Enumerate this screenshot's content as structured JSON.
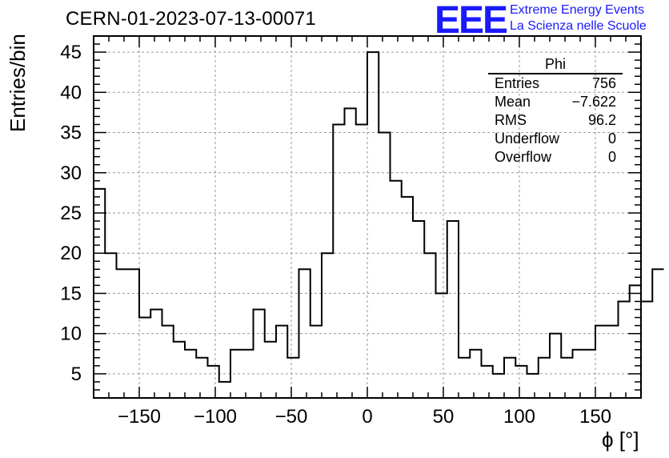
{
  "title": "CERN-01-2023-07-13-00071",
  "logo": {
    "mark": "EEE",
    "line1": "Extreme Energy Events",
    "line2": "La Scienza nelle Scuole"
  },
  "stats": {
    "title": "Phi",
    "rows": [
      {
        "label": "Entries",
        "value": "756"
      },
      {
        "label": "Mean",
        "value": "−7.622"
      },
      {
        "label": "RMS",
        "value": "96.2"
      },
      {
        "label": "Underflow",
        "value": "0"
      },
      {
        "label": "Overflow",
        "value": "0"
      }
    ]
  },
  "chart_data": {
    "type": "histogram",
    "title": "CERN-01-2023-07-13-00071",
    "xlabel": "ϕ [°]",
    "ylabel": "Entries/bin",
    "xlim": [
      -180,
      180
    ],
    "ylim": [
      2,
      47
    ],
    "bin_width": 7.5,
    "grid": true,
    "x_ticks": [
      -150,
      -100,
      -50,
      0,
      50,
      100,
      150
    ],
    "x_tick_labels": [
      "−150",
      "−100",
      "−50",
      "0",
      "50",
      "100",
      "150"
    ],
    "y_ticks": [
      5,
      10,
      15,
      20,
      25,
      30,
      35,
      40,
      45
    ],
    "values": [
      28,
      20,
      18,
      18,
      12,
      13,
      11,
      9,
      8,
      7,
      6,
      4,
      8,
      8,
      13,
      9,
      11,
      7,
      18,
      11,
      20,
      36,
      38,
      36,
      45,
      35,
      29,
      27,
      24,
      20,
      15,
      24,
      7,
      8,
      6,
      5,
      7,
      6,
      5,
      7,
      10,
      7,
      8,
      8,
      11,
      11,
      14,
      16,
      14,
      18
    ]
  }
}
